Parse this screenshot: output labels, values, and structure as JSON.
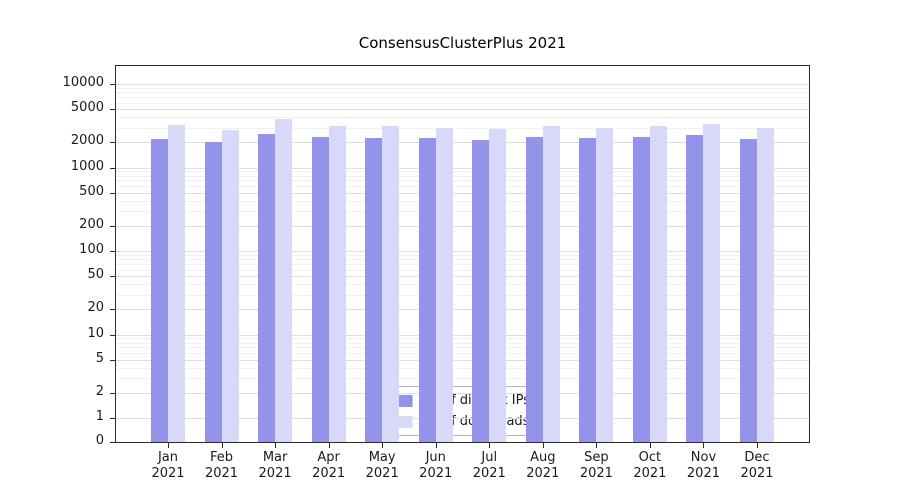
{
  "chart_data": {
    "type": "bar",
    "title": "ConsensusClusterPlus 2021",
    "xlabel": "",
    "ylabel": "",
    "yscale": "symlog",
    "ylim": [
      0,
      10000
    ],
    "yticks": [
      0,
      1,
      2,
      5,
      10,
      20,
      50,
      100,
      200,
      500,
      1000,
      2000,
      5000,
      10000
    ],
    "grid": true,
    "legend_position": "bottom-center-inside",
    "categories": [
      "Jan 2021",
      "Feb 2021",
      "Mar 2021",
      "Apr 2021",
      "May 2021",
      "Jun 2021",
      "Jul 2021",
      "Aug 2021",
      "Sep 2021",
      "Oct 2021",
      "Nov 2021",
      "Dec 2021"
    ],
    "series": [
      {
        "name": "Nb of distinct IPs",
        "color": "#9393e9",
        "values": [
          2200,
          2000,
          2550,
          2300,
          2250,
          2250,
          2150,
          2350,
          2250,
          2350,
          2450,
          2200
        ]
      },
      {
        "name": "Nb of downloads",
        "color": "#d8d8f8",
        "values": [
          3200,
          2850,
          3800,
          3100,
          3150,
          2950,
          2900,
          3150,
          2950,
          3150,
          3300,
          2950
        ]
      }
    ]
  }
}
